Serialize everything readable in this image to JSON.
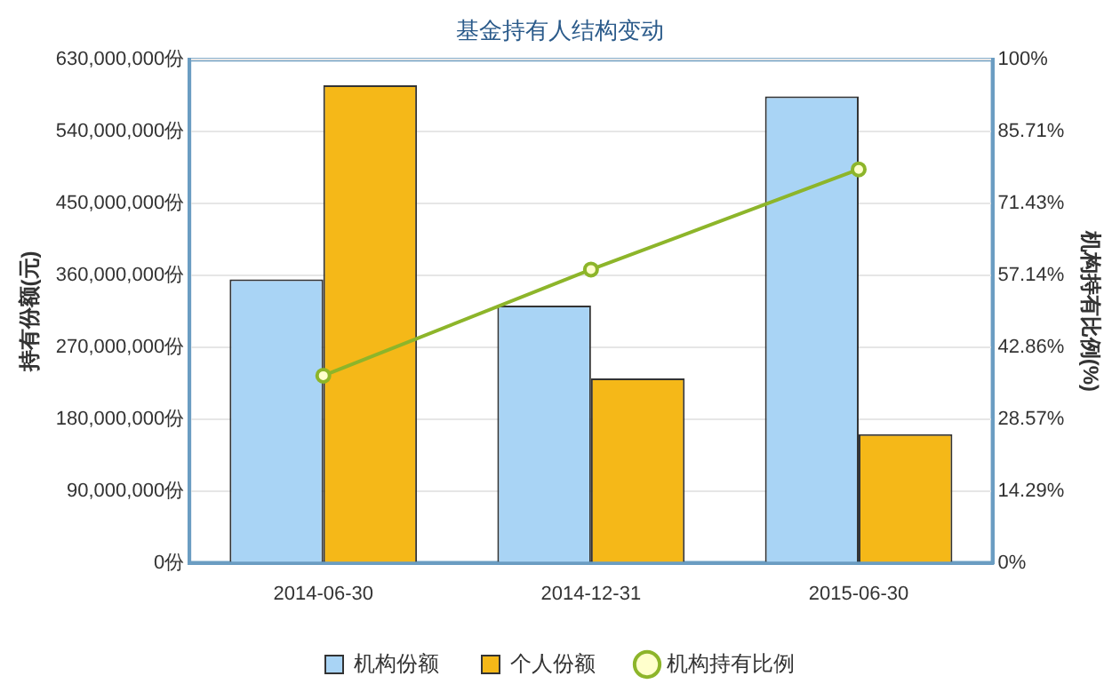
{
  "chart_data": {
    "type": "bar",
    "title": "基金持有人结构变动",
    "ylabel": "持有份额(元)",
    "y2label": "机构持有比例(%)",
    "categories": [
      "2014-06-30",
      "2014-12-31",
      "2015-06-30"
    ],
    "series": [
      {
        "name": "机构份额",
        "color": "#a9d4f5",
        "values": [
          355000000,
          322000000,
          584000000
        ]
      },
      {
        "name": "个人份额",
        "color": "#f5b818",
        "values": [
          598000000,
          231000000,
          161000000
        ]
      },
      {
        "name": "机构持有比例",
        "type": "line",
        "axis": "y2",
        "color": "#8db52a",
        "values": [
          37.2,
          58.3,
          78.2
        ]
      }
    ],
    "ylim": [
      0,
      630000000
    ],
    "yticks": [
      {
        "value": 0,
        "label": "0份"
      },
      {
        "value": 90000000,
        "label": "90,000,000份"
      },
      {
        "value": 180000000,
        "label": "180,000,000份"
      },
      {
        "value": 270000000,
        "label": "270,000,000份"
      },
      {
        "value": 360000000,
        "label": "360,000,000份"
      },
      {
        "value": 450000000,
        "label": "450,000,000份"
      },
      {
        "value": 540000000,
        "label": "540,000,000份"
      },
      {
        "value": 630000000,
        "label": "630,000,000份"
      }
    ],
    "y2lim": [
      0,
      100
    ],
    "y2ticks": [
      {
        "value": 0,
        "label": "0%"
      },
      {
        "value": 14.29,
        "label": "14.29%"
      },
      {
        "value": 28.57,
        "label": "28.57%"
      },
      {
        "value": 42.86,
        "label": "42.86%"
      },
      {
        "value": 57.14,
        "label": "57.14%"
      },
      {
        "value": 71.43,
        "label": "71.43%"
      },
      {
        "value": 85.71,
        "label": "85.71%"
      },
      {
        "value": 100,
        "label": "100%"
      }
    ],
    "grid": "y",
    "legend": "bottom",
    "marker": "circle"
  }
}
